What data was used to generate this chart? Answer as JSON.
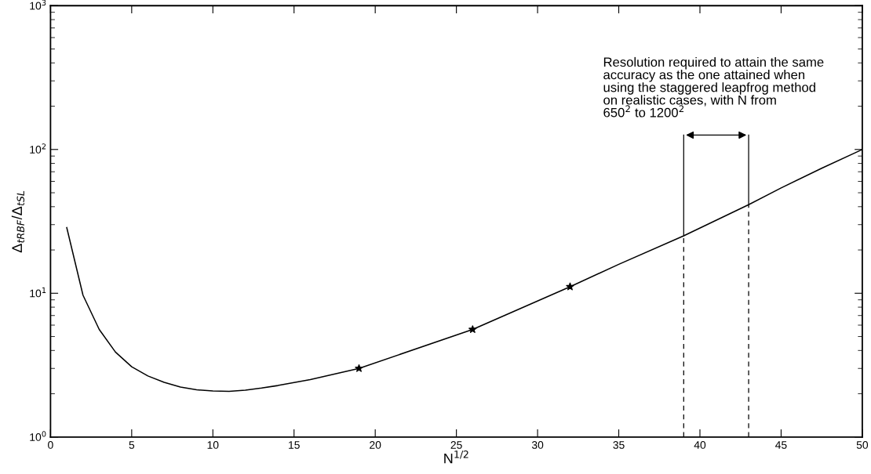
{
  "chart_data": {
    "type": "line",
    "xlabel": "N$^{1/2}$",
    "ylabel": "Δ$_{tRBF}$/Δ$_{tSL}$",
    "log": "y",
    "xlim": [
      0,
      50
    ],
    "xticks": [
      0,
      5,
      10,
      15,
      20,
      25,
      30,
      35,
      40,
      45,
      50
    ],
    "ylim": [
      1,
      1000
    ],
    "yticks": [
      {
        "value": 1,
        "label": "10$^{0}$"
      },
      {
        "value": 10,
        "label": "10$^{1}$"
      },
      {
        "value": 100,
        "label": "10$^{2}$"
      },
      {
        "value": 1000,
        "label": "10$^{3}$"
      }
    ],
    "grid": false,
    "legend": false,
    "series": [
      {
        "color": "#000000",
        "marker": "none",
        "line_style": "solid",
        "x": [
          1,
          2,
          3,
          4,
          5,
          6,
          7,
          8,
          9,
          10,
          11,
          12,
          13,
          14,
          15,
          16,
          19,
          26,
          32,
          35,
          39,
          43,
          45,
          47.5,
          50
        ],
        "values": [
          28.6,
          9.7,
          5.6,
          3.9,
          3.08,
          2.66,
          2.4,
          2.23,
          2.13,
          2.09,
          2.08,
          2.12,
          2.19,
          2.28,
          2.39,
          2.51,
          3.0,
          5.6,
          11.1,
          15.9,
          25.1,
          41.3,
          54,
          74,
          100
        ]
      },
      {
        "type": "scatter",
        "color": "#000000",
        "marker": "star",
        "x": [
          19,
          26,
          32
        ],
        "values": [
          3.0,
          5.6,
          11.1
        ]
      }
    ],
    "ref_lines": [
      {
        "axis": "x",
        "value": 39,
        "line_style": "dashed"
      },
      {
        "axis": "x",
        "value": 43,
        "line_style": "dashed"
      }
    ],
    "annotations": [
      "Resolution required to attain the same\naccuracy as the one attained when\nusing the staggered leapfrog method\non realistic cases, with N from\n650$^{2}$ to 1200$^{2}$"
    ]
  }
}
